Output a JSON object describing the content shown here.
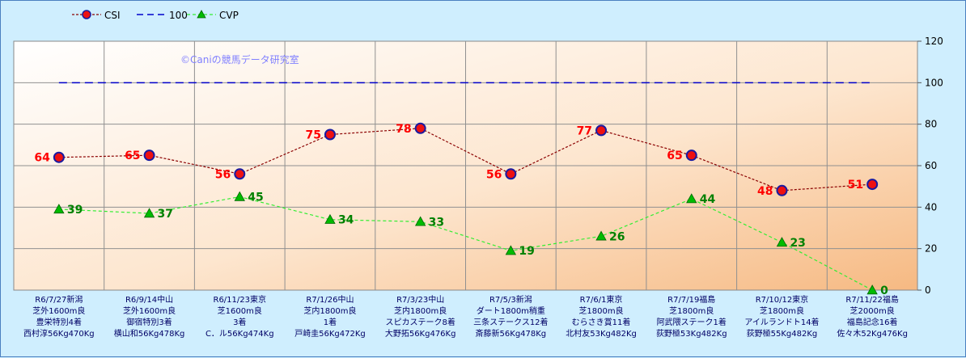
{
  "chart_data": {
    "type": "line",
    "watermark": "©Caniの競馬データ研究室",
    "legend": {
      "position": "top-left",
      "entries": [
        "CSI",
        "100",
        "CVP"
      ]
    },
    "ylim": [
      0,
      120
    ],
    "yticks": [
      0,
      20,
      40,
      60,
      80,
      100,
      120
    ],
    "grid": true,
    "categories": [
      [
        "R6/7/27新潟",
        "芝外1600m良",
        "豊栄特別4着",
        "西村淳56Kg470Kg"
      ],
      [
        "R6/9/14中山",
        "芝外1600m良",
        "御宿特別3着",
        "横山和56Kg478Kg"
      ],
      [
        "R6/11/23東京",
        "芝1600m良",
        "3着",
        "C．ル56Kg474Kg"
      ],
      [
        "R7/1/26中山",
        "芝内1800m良",
        "1着",
        "戸崎圭56Kg472Kg"
      ],
      [
        "R7/3/23中山",
        "芝内1800m良",
        "スピカステーク8着",
        "大野拓56Kg476Kg"
      ],
      [
        "R7/5/3新潟",
        "ダート1800m稍重",
        "三条ステークス12着",
        "斎藤新56Kg478Kg"
      ],
      [
        "R7/6/1東京",
        "芝1800m良",
        "むらさき賞11着",
        "北村友53Kg482Kg"
      ],
      [
        "R7/7/19福島",
        "芝1800m良",
        "阿武隈ステーク1着",
        "荻野極53Kg482Kg"
      ],
      [
        "R7/10/12東京",
        "芝1800m良",
        "アイルランドト14着",
        "荻野極55Kg482Kg"
      ],
      [
        "R7/11/22福島",
        "芝2000m良",
        "福島記念16着",
        "佐々木52Kg476Kg"
      ]
    ],
    "series": [
      {
        "name": "CSI",
        "values": [
          64,
          65,
          56,
          75,
          78,
          56,
          77,
          65,
          48,
          51
        ],
        "color": "#8b0000",
        "label_color": "#ff0000",
        "marker": "circle"
      },
      {
        "name": "100",
        "values": [
          100,
          100,
          100,
          100,
          100,
          100,
          100,
          100,
          100,
          100
        ],
        "color": "#0000cc",
        "marker": "none"
      },
      {
        "name": "CVP",
        "values": [
          39,
          37,
          45,
          34,
          33,
          19,
          26,
          44,
          23,
          0
        ],
        "color": "#33ee33",
        "label_color": "#008000",
        "marker": "triangle"
      }
    ]
  }
}
